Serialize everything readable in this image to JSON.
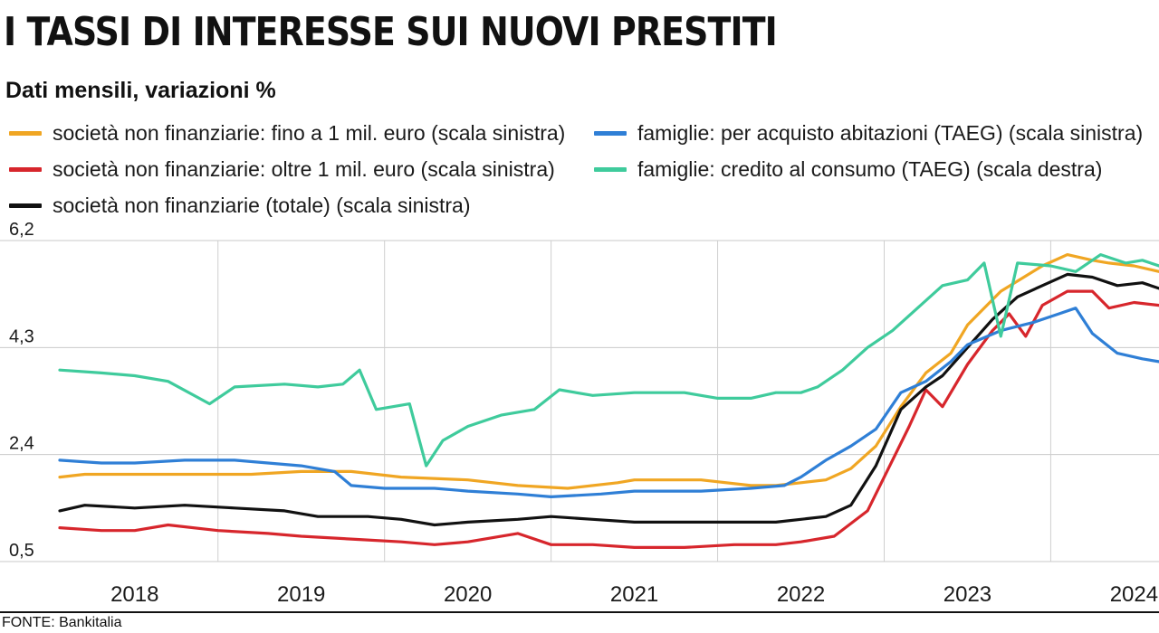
{
  "header": {
    "title": "I TASSI DI INTERESSE SUI NUOVI PRESTITI",
    "subtitle": "Dati mensili, variazioni %"
  },
  "footer": {
    "source": "FONTE: Bankitalia"
  },
  "chart_data": {
    "type": "line",
    "ylim": [
      0.5,
      6.2
    ],
    "yticks": [
      "6,2",
      "4,3",
      "2,4",
      "0,5"
    ],
    "xrange": [
      2017.55,
      2024.15
    ],
    "x_tick_labels": [
      {
        "label": "2018",
        "year": 2018
      },
      {
        "label": "2019",
        "year": 2019
      },
      {
        "label": "2020",
        "year": 2020
      },
      {
        "label": "2021",
        "year": 2021
      },
      {
        "label": "2022",
        "year": 2022
      },
      {
        "label": "2023",
        "year": 2023
      },
      {
        "label": "2024",
        "year": 2024
      }
    ],
    "grid": true,
    "legend_placement": "top",
    "series": [
      {
        "name": "società non finanziarie: fino a 1 mil. euro (scala sinistra)",
        "color": "#f0a623",
        "points": [
          [
            2017.55,
            2.0
          ],
          [
            2017.7,
            2.05
          ],
          [
            2018.0,
            2.05
          ],
          [
            2018.4,
            2.05
          ],
          [
            2018.7,
            2.05
          ],
          [
            2019.0,
            2.1
          ],
          [
            2019.3,
            2.1
          ],
          [
            2019.6,
            2.0
          ],
          [
            2020.0,
            1.95
          ],
          [
            2020.3,
            1.85
          ],
          [
            2020.6,
            1.8
          ],
          [
            2020.9,
            1.9
          ],
          [
            2021.0,
            1.95
          ],
          [
            2021.4,
            1.95
          ],
          [
            2021.7,
            1.85
          ],
          [
            2021.85,
            1.85
          ],
          [
            2022.0,
            1.9
          ],
          [
            2022.15,
            1.95
          ],
          [
            2022.3,
            2.15
          ],
          [
            2022.45,
            2.55
          ],
          [
            2022.6,
            3.25
          ],
          [
            2022.75,
            3.85
          ],
          [
            2022.9,
            4.2
          ],
          [
            2023.0,
            4.7
          ],
          [
            2023.2,
            5.3
          ],
          [
            2023.45,
            5.75
          ],
          [
            2023.6,
            5.95
          ],
          [
            2023.75,
            5.85
          ],
          [
            2023.85,
            5.8
          ],
          [
            2024.0,
            5.75
          ],
          [
            2024.15,
            5.65
          ]
        ]
      },
      {
        "name": "società non finanziarie: oltre 1 mil. euro (scala sinistra)",
        "color": "#d7262c",
        "points": [
          [
            2017.55,
            1.1
          ],
          [
            2017.8,
            1.05
          ],
          [
            2018.0,
            1.05
          ],
          [
            2018.2,
            1.15
          ],
          [
            2018.5,
            1.05
          ],
          [
            2018.8,
            1.0
          ],
          [
            2019.0,
            0.95
          ],
          [
            2019.3,
            0.9
          ],
          [
            2019.6,
            0.85
          ],
          [
            2019.8,
            0.8
          ],
          [
            2020.0,
            0.85
          ],
          [
            2020.3,
            1.0
          ],
          [
            2020.5,
            0.8
          ],
          [
            2020.75,
            0.8
          ],
          [
            2021.0,
            0.75
          ],
          [
            2021.3,
            0.75
          ],
          [
            2021.6,
            0.8
          ],
          [
            2021.85,
            0.8
          ],
          [
            2022.0,
            0.85
          ],
          [
            2022.2,
            0.95
          ],
          [
            2022.4,
            1.4
          ],
          [
            2022.5,
            2.0
          ],
          [
            2022.65,
            2.9
          ],
          [
            2022.75,
            3.55
          ],
          [
            2022.85,
            3.25
          ],
          [
            2023.0,
            4.0
          ],
          [
            2023.15,
            4.6
          ],
          [
            2023.25,
            4.9
          ],
          [
            2023.35,
            4.5
          ],
          [
            2023.45,
            5.05
          ],
          [
            2023.6,
            5.3
          ],
          [
            2023.75,
            5.3
          ],
          [
            2023.85,
            5.0
          ],
          [
            2024.0,
            5.1
          ],
          [
            2024.15,
            5.05
          ]
        ]
      },
      {
        "name": "società non finanziarie (totale) (scala sinistra)",
        "color": "#111111",
        "points": [
          [
            2017.55,
            1.4
          ],
          [
            2017.7,
            1.5
          ],
          [
            2018.0,
            1.45
          ],
          [
            2018.3,
            1.5
          ],
          [
            2018.6,
            1.45
          ],
          [
            2018.9,
            1.4
          ],
          [
            2019.1,
            1.3
          ],
          [
            2019.4,
            1.3
          ],
          [
            2019.6,
            1.25
          ],
          [
            2019.8,
            1.15
          ],
          [
            2020.0,
            1.2
          ],
          [
            2020.3,
            1.25
          ],
          [
            2020.5,
            1.3
          ],
          [
            2020.75,
            1.25
          ],
          [
            2021.0,
            1.2
          ],
          [
            2021.3,
            1.2
          ],
          [
            2021.6,
            1.2
          ],
          [
            2021.85,
            1.2
          ],
          [
            2022.0,
            1.25
          ],
          [
            2022.15,
            1.3
          ],
          [
            2022.3,
            1.5
          ],
          [
            2022.45,
            2.2
          ],
          [
            2022.6,
            3.2
          ],
          [
            2022.75,
            3.6
          ],
          [
            2022.85,
            3.8
          ],
          [
            2023.0,
            4.3
          ],
          [
            2023.15,
            4.8
          ],
          [
            2023.3,
            5.2
          ],
          [
            2023.45,
            5.4
          ],
          [
            2023.6,
            5.6
          ],
          [
            2023.75,
            5.55
          ],
          [
            2023.9,
            5.4
          ],
          [
            2024.05,
            5.45
          ],
          [
            2024.15,
            5.35
          ]
        ]
      },
      {
        "name": "famiglie: per acquisto abitazioni (TAEG) (scala sinistra)",
        "color": "#2f7fd6",
        "points": [
          [
            2017.55,
            2.3
          ],
          [
            2017.8,
            2.25
          ],
          [
            2018.0,
            2.25
          ],
          [
            2018.3,
            2.3
          ],
          [
            2018.6,
            2.3
          ],
          [
            2018.8,
            2.25
          ],
          [
            2019.0,
            2.2
          ],
          [
            2019.2,
            2.1
          ],
          [
            2019.3,
            1.85
          ],
          [
            2019.5,
            1.8
          ],
          [
            2019.8,
            1.8
          ],
          [
            2020.0,
            1.75
          ],
          [
            2020.3,
            1.7
          ],
          [
            2020.5,
            1.65
          ],
          [
            2020.8,
            1.7
          ],
          [
            2021.0,
            1.75
          ],
          [
            2021.4,
            1.75
          ],
          [
            2021.7,
            1.8
          ],
          [
            2021.9,
            1.85
          ],
          [
            2022.0,
            2.0
          ],
          [
            2022.15,
            2.3
          ],
          [
            2022.3,
            2.55
          ],
          [
            2022.45,
            2.85
          ],
          [
            2022.6,
            3.5
          ],
          [
            2022.75,
            3.7
          ],
          [
            2022.9,
            4.05
          ],
          [
            2023.0,
            4.35
          ],
          [
            2023.2,
            4.6
          ],
          [
            2023.4,
            4.75
          ],
          [
            2023.55,
            4.9
          ],
          [
            2023.65,
            5.0
          ],
          [
            2023.75,
            4.55
          ],
          [
            2023.9,
            4.2
          ],
          [
            2024.05,
            4.1
          ],
          [
            2024.15,
            4.05
          ]
        ]
      },
      {
        "name": "famiglie: credito al consumo (TAEG) (scala destra)",
        "color": "#3fcb9c",
        "points": [
          [
            2017.55,
            3.9
          ],
          [
            2017.8,
            3.85
          ],
          [
            2018.0,
            3.8
          ],
          [
            2018.2,
            3.7
          ],
          [
            2018.45,
            3.3
          ],
          [
            2018.6,
            3.6
          ],
          [
            2018.9,
            3.65
          ],
          [
            2019.1,
            3.6
          ],
          [
            2019.25,
            3.65
          ],
          [
            2019.35,
            3.9
          ],
          [
            2019.45,
            3.2
          ],
          [
            2019.65,
            3.3
          ],
          [
            2019.75,
            2.2
          ],
          [
            2019.85,
            2.65
          ],
          [
            2020.0,
            2.9
          ],
          [
            2020.2,
            3.1
          ],
          [
            2020.4,
            3.2
          ],
          [
            2020.55,
            3.55
          ],
          [
            2020.75,
            3.45
          ],
          [
            2021.0,
            3.5
          ],
          [
            2021.3,
            3.5
          ],
          [
            2021.5,
            3.4
          ],
          [
            2021.7,
            3.4
          ],
          [
            2021.85,
            3.5
          ],
          [
            2022.0,
            3.5
          ],
          [
            2022.1,
            3.6
          ],
          [
            2022.25,
            3.9
          ],
          [
            2022.4,
            4.3
          ],
          [
            2022.55,
            4.6
          ],
          [
            2022.7,
            5.0
          ],
          [
            2022.85,
            5.4
          ],
          [
            2023.0,
            5.5
          ],
          [
            2023.1,
            5.8
          ],
          [
            2023.2,
            4.5
          ],
          [
            2023.3,
            5.8
          ],
          [
            2023.5,
            5.75
          ],
          [
            2023.65,
            5.65
          ],
          [
            2023.8,
            5.95
          ],
          [
            2023.95,
            5.8
          ],
          [
            2024.05,
            5.85
          ],
          [
            2024.15,
            5.75
          ]
        ]
      }
    ]
  }
}
